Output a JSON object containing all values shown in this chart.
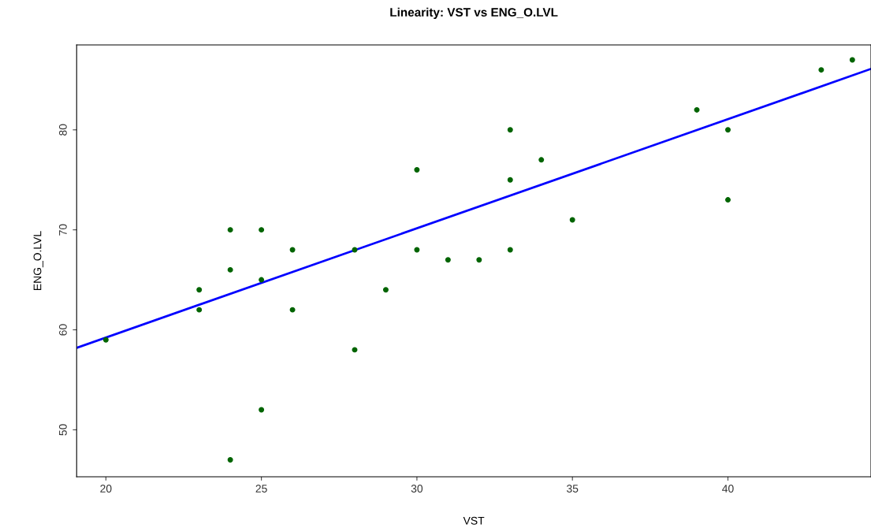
{
  "chart_data": {
    "type": "scatter",
    "title": "Linearity: VST vs ENG_O.LVL",
    "xlabel": "VST",
    "ylabel": "ENG_O.LVL",
    "xlim": [
      19.06,
      44.6
    ],
    "ylim": [
      45.3,
      88.5
    ],
    "xticks": [
      20,
      25,
      30,
      35,
      40
    ],
    "yticks": [
      50,
      60,
      70,
      80
    ],
    "grid": false,
    "legend": false,
    "series": [
      {
        "marker": "circle",
        "color": "#006400",
        "x": [
          20,
          23,
          23,
          24,
          24,
          24,
          25,
          25,
          25,
          26,
          26,
          28,
          28,
          29,
          30,
          30,
          31,
          32,
          33,
          33,
          33,
          34,
          35,
          39,
          40,
          40,
          43,
          44
        ],
        "values": [
          59,
          64,
          62,
          70,
          66,
          47,
          70,
          65,
          52,
          68,
          62,
          68,
          58,
          64,
          76,
          68,
          67,
          67,
          80,
          75,
          68,
          77,
          71,
          82,
          80,
          73,
          86,
          87
        ]
      },
      {
        "type": "line",
        "marker": "none",
        "color": "#0000ff",
        "line_style": "solid",
        "x": [
          19.06,
          44.6
        ],
        "values": [
          58.2,
          86.1
        ]
      }
    ]
  }
}
